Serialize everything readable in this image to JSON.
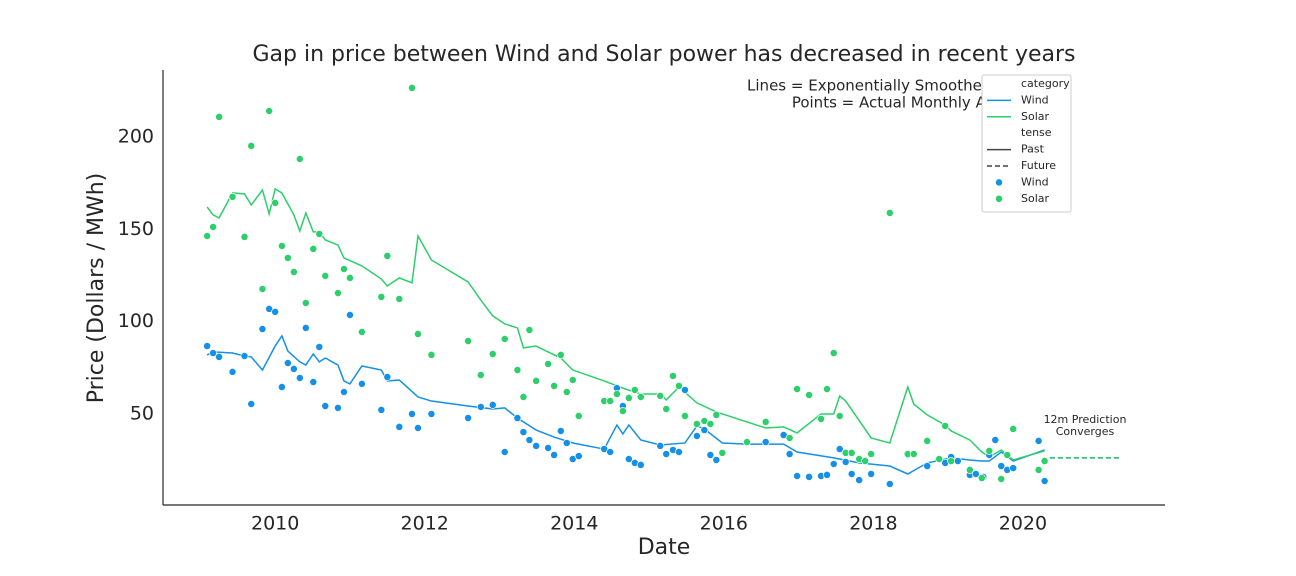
{
  "chart_data": {
    "type": "line",
    "title": "Gap in price between Wind and Solar power has decreased in recent years",
    "x_label": "Date",
    "y_label": "Price (Dollars / MWh)",
    "notes": [
      "Lines = Exponentially Smoothed Trends",
      "Points = Actual Monthly Averages"
    ],
    "prediction_note": [
      "12m Prediction",
      "Converges"
    ],
    "xlim": [
      2008.5,
      2021.9
    ],
    "ylim": [
      0.7,
      236.3
    ],
    "xticks": [
      2010,
      2012,
      2014,
      2016,
      2018,
      2020
    ],
    "yticks": [
      50,
      100,
      150,
      200
    ],
    "grid": false,
    "legend": {
      "position": "upper right",
      "category_title": "category",
      "tense_title": "tense",
      "tense_entries": [
        "Past",
        "Future"
      ]
    },
    "series": [
      {
        "name": "Wind",
        "type": "line",
        "color": "#1490e8",
        "x": [
          2009.09,
          2009.17,
          2009.43,
          2009.59,
          2009.68,
          2009.83,
          2010.0,
          2010.09,
          2010.17,
          2010.33,
          2010.41,
          2010.51,
          2010.59,
          2010.67,
          2010.84,
          2010.92,
          2011.0,
          2011.16,
          2011.42,
          2011.5,
          2011.66,
          2011.91,
          2012.09,
          2012.58,
          2012.91,
          2013.07,
          2013.24,
          2013.49,
          2013.73,
          2013.98,
          2014.4,
          2014.57,
          2014.65,
          2014.73,
          2014.89,
          2015.15,
          2015.48,
          2015.64,
          2015.74,
          2015.98,
          2016.31,
          2016.8,
          2016.98,
          2017.47,
          2017.81,
          2018.22,
          2018.46,
          2018.72,
          2019.04,
          2019.29,
          2019.45,
          2019.55,
          2019.71,
          2019.87,
          2020.29
        ],
        "values": [
          82,
          83.6,
          83,
          81.4,
          80.9,
          73.8,
          86.8,
          92.3,
          84.1,
          78.2,
          76.5,
          82.5,
          78.2,
          80.3,
          76.5,
          67.9,
          66.3,
          76,
          73.8,
          67.9,
          68.4,
          59.2,
          57,
          54.3,
          52.7,
          53.3,
          47.8,
          41.3,
          37.5,
          34.3,
          31,
          44,
          39.2,
          44,
          35.9,
          33.2,
          34.3,
          43.5,
          41.9,
          34.3,
          33.7,
          33.7,
          29.4,
          26.2,
          23.5,
          21.8,
          17.5,
          23.5,
          26.2,
          25.1,
          24.5,
          24.5,
          29.4,
          24.5,
          30.5
        ]
      },
      {
        "name": "Solar",
        "type": "line",
        "color": "#2ccf6a",
        "x": [
          2009.09,
          2009.17,
          2009.25,
          2009.43,
          2009.59,
          2009.68,
          2009.83,
          2009.92,
          2010.0,
          2010.09,
          2010.25,
          2010.33,
          2010.41,
          2010.51,
          2010.59,
          2010.67,
          2010.84,
          2010.92,
          2011.16,
          2011.42,
          2011.5,
          2011.66,
          2011.83,
          2011.91,
          2012.09,
          2012.58,
          2012.75,
          2012.91,
          2013.07,
          2013.24,
          2013.32,
          2013.49,
          2013.65,
          2013.82,
          2013.98,
          2014.4,
          2014.65,
          2014.89,
          2015.15,
          2015.23,
          2015.4,
          2015.64,
          2015.9,
          2016.31,
          2016.56,
          2016.8,
          2016.98,
          2017.3,
          2017.47,
          2017.55,
          2017.63,
          2017.97,
          2018.22,
          2018.46,
          2018.54,
          2018.72,
          2018.96,
          2019.04,
          2019.29,
          2019.45,
          2019.55,
          2019.71,
          2019.87,
          2020.29
        ],
        "values": [
          162.1,
          157.8,
          156.2,
          169.7,
          169.2,
          163.2,
          171.3,
          158.3,
          171.9,
          169.7,
          157.8,
          149.1,
          158.9,
          148.6,
          148.6,
          144.3,
          141.5,
          134.5,
          130.2,
          123.1,
          119.3,
          123.7,
          121,
          146.4,
          133.4,
          121.5,
          111.7,
          103.1,
          98.8,
          96.6,
          85.8,
          86.8,
          83.6,
          80.3,
          73.8,
          67.9,
          64,
          60.8,
          60.8,
          57.6,
          64.6,
          56,
          51.1,
          45.7,
          42.4,
          43,
          39.7,
          50,
          50,
          59.8,
          57,
          37,
          34.3,
          64.6,
          55.4,
          49.5,
          44,
          40.8,
          35.9,
          29.4,
          26.7,
          30.5,
          25.1,
          30
        ]
      },
      {
        "type": "line",
        "dash": true,
        "color": "#1490e8",
        "x": [
          2020.36,
          2021.3
        ],
        "values": [
          26.2,
          26.2
        ]
      },
      {
        "type": "line",
        "dash": true,
        "color": "#2ccf6a",
        "x": [
          2020.36,
          2021.3
        ],
        "values": [
          26.2,
          26.2
        ]
      },
      {
        "name": "Wind",
        "type": "scatter",
        "color": "#1490e8",
        "x": [
          2009.09,
          2009.17,
          2009.25,
          2009.43,
          2009.59,
          2009.68,
          2009.83,
          2009.92,
          2010.0,
          2010.09,
          2010.17,
          2010.25,
          2010.33,
          2010.41,
          2010.51,
          2010.59,
          2010.67,
          2010.84,
          2010.92,
          2011.0,
          2011.16,
          2011.42,
          2011.5,
          2011.66,
          2011.83,
          2011.91,
          2012.09,
          2012.58,
          2012.75,
          2012.91,
          2013.07,
          2013.24,
          2013.32,
          2013.4,
          2013.49,
          2013.65,
          2013.73,
          2013.82,
          2013.9,
          2013.98,
          2014.06,
          2014.4,
          2014.48,
          2014.57,
          2014.65,
          2014.73,
          2014.81,
          2014.89,
          2015.15,
          2015.23,
          2015.32,
          2015.4,
          2015.48,
          2015.64,
          2015.74,
          2015.82,
          2015.9,
          2016.31,
          2016.56,
          2016.8,
          2016.88,
          2016.98,
          2017.14,
          2017.3,
          2017.38,
          2017.47,
          2017.55,
          2017.63,
          2017.71,
          2017.81,
          2017.97,
          2018.22,
          2018.46,
          2018.72,
          2018.96,
          2019.04,
          2019.13,
          2019.29,
          2019.37,
          2019.47,
          2019.55,
          2019.63,
          2019.71,
          2019.79,
          2019.87,
          2020.21,
          2020.29
        ],
        "values": [
          86.8,
          83,
          80.9,
          72.8,
          81.4,
          55.4,
          96,
          106.9,
          105.3,
          64.6,
          77.6,
          74.4,
          69.5,
          96.6,
          67.3,
          86.3,
          54.3,
          53.3,
          61.9,
          103.6,
          66.3,
          52.2,
          70,
          43,
          50,
          42.4,
          50,
          47.8,
          53.8,
          54.9,
          29.4,
          47.8,
          40.2,
          35.9,
          32.7,
          31.6,
          27.8,
          40.8,
          34.3,
          25.6,
          27.2,
          31,
          29.4,
          64,
          54.3,
          25.6,
          23.5,
          22.4,
          32.7,
          28.3,
          30.5,
          29.4,
          63,
          38.1,
          41.3,
          27.8,
          25.1,
          34.8,
          34.8,
          38.6,
          28.3,
          16.4,
          15.9,
          16.4,
          17,
          22.9,
          31,
          24,
          17.5,
          14.2,
          17.5,
          12.1,
          27.8,
          21.8,
          23.5,
          26.7,
          24.5,
          17,
          17.5,
          15.9,
          27.8,
          35.9,
          21.8,
          19.7,
          20.7,
          35.4,
          13.7
        ]
      },
      {
        "name": "Solar",
        "type": "scatter",
        "color": "#2ccf6a",
        "x": [
          2009.09,
          2009.17,
          2009.25,
          2009.43,
          2009.59,
          2009.68,
          2009.83,
          2009.92,
          2010.0,
          2010.09,
          2010.17,
          2010.25,
          2010.33,
          2010.41,
          2010.51,
          2010.59,
          2010.67,
          2010.84,
          2010.92,
          2011.0,
          2011.16,
          2011.42,
          2011.5,
          2011.66,
          2011.83,
          2011.91,
          2012.09,
          2012.58,
          2012.75,
          2012.91,
          2013.07,
          2013.24,
          2013.32,
          2013.4,
          2013.49,
          2013.65,
          2013.73,
          2013.82,
          2013.9,
          2013.98,
          2014.06,
          2014.4,
          2014.48,
          2014.57,
          2014.65,
          2014.73,
          2014.81,
          2014.89,
          2015.15,
          2015.23,
          2015.32,
          2015.4,
          2015.48,
          2015.64,
          2015.74,
          2015.82,
          2015.9,
          2015.98,
          2016.31,
          2016.56,
          2016.88,
          2016.98,
          2017.14,
          2017.3,
          2017.38,
          2017.47,
          2017.55,
          2017.63,
          2017.71,
          2017.81,
          2017.89,
          2017.97,
          2018.22,
          2018.46,
          2018.54,
          2018.72,
          2018.88,
          2018.96,
          2019.04,
          2019.29,
          2019.45,
          2019.55,
          2019.71,
          2019.79,
          2019.87,
          2020.21,
          2020.29
        ],
        "values": [
          146.4,
          151.3,
          210.9,
          167.6,
          145.9,
          195.2,
          117.7,
          214.1,
          164.3,
          141,
          134.5,
          126.9,
          188.1,
          110.1,
          139.4,
          147.5,
          124.8,
          115.5,
          128.5,
          123.7,
          94.4,
          113.4,
          135.6,
          112.3,
          226.6,
          93.3,
          82,
          89.5,
          71.1,
          82.5,
          90.6,
          73.8,
          59.2,
          95.5,
          67.9,
          77.1,
          65.2,
          82,
          61.9,
          68.4,
          48.9,
          57,
          57,
          60.8,
          51.6,
          58.7,
          63,
          59.2,
          59.8,
          52.7,
          70.6,
          65.2,
          48.9,
          44.6,
          46.2,
          44.6,
          49.5,
          28.9,
          34.8,
          45.7,
          37,
          63.5,
          60.3,
          47.3,
          63.5,
          83,
          48.9,
          28.9,
          28.9,
          25.6,
          24.5,
          28.3,
          158.9,
          28.3,
          28.3,
          35.4,
          25.6,
          43.5,
          24.5,
          19.7,
          15.3,
          30,
          14.8,
          27.8,
          41.9,
          19.7,
          24.5
        ]
      }
    ]
  }
}
